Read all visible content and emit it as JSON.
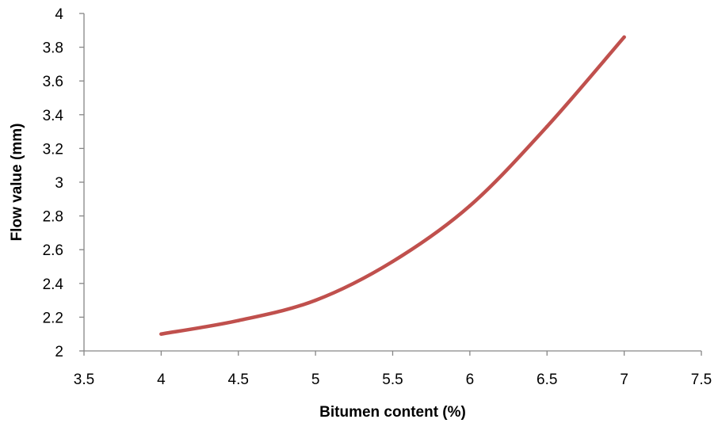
{
  "chart_data": {
    "type": "line",
    "title": "",
    "xlabel": "Bitumen content (%)",
    "ylabel": "Flow value (mm)",
    "xlim": [
      3.5,
      7.5
    ],
    "ylim": [
      2,
      4
    ],
    "x_ticks": [
      3.5,
      4,
      4.5,
      5,
      5.5,
      6,
      6.5,
      7,
      7.5
    ],
    "x_tick_labels": [
      "3.5",
      "4",
      "4.5",
      "5",
      "5.5",
      "6",
      "6.5",
      "7",
      "7.5"
    ],
    "y_ticks": [
      2,
      2.2,
      2.4,
      2.6,
      2.8,
      3,
      3.2,
      3.4,
      3.6,
      3.8,
      4
    ],
    "y_tick_labels": [
      "2",
      "2.2",
      "2.4",
      "2.6",
      "2.8",
      "3",
      "3.2",
      "3.4",
      "3.6",
      "3.8",
      "4"
    ],
    "grid": false,
    "legend": "none",
    "smooth": true,
    "series": [
      {
        "color": "#C0504D",
        "x": [
          4,
          4.5,
          5,
          5.5,
          6,
          6.5,
          7
        ],
        "y": [
          2.1,
          2.18,
          2.3,
          2.53,
          2.86,
          3.33,
          3.86
        ]
      }
    ]
  }
}
